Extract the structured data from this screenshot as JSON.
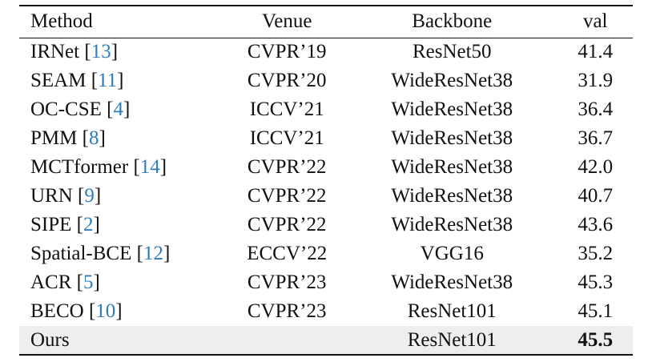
{
  "table": {
    "headers": {
      "method": "Method",
      "venue": "Venue",
      "backbone": "Backbone",
      "val": "val"
    },
    "rows": [
      {
        "method": "IRNet",
        "cite": "13",
        "venue": "CVPR’19",
        "backbone": "ResNet50",
        "val": "41.4"
      },
      {
        "method": "SEAM",
        "cite": "11",
        "venue": "CVPR’20",
        "backbone": "WideResNet38",
        "val": "31.9"
      },
      {
        "method": "OC-CSE",
        "cite": "4",
        "venue": "ICCV’21",
        "backbone": "WideResNet38",
        "val": "36.4"
      },
      {
        "method": "PMM",
        "cite": "8",
        "venue": "ICCV’21",
        "backbone": "WideResNet38",
        "val": "36.7"
      },
      {
        "method": "MCTformer",
        "cite": "14",
        "venue": "CVPR’22",
        "backbone": "WideResNet38",
        "val": "42.0"
      },
      {
        "method": "URN",
        "cite": "9",
        "venue": "CVPR’22",
        "backbone": "WideResNet38",
        "val": "40.7"
      },
      {
        "method": "SIPE",
        "cite": "2",
        "venue": "CVPR’22",
        "backbone": "WideResNet38",
        "val": "43.6"
      },
      {
        "method": "Spatial-BCE",
        "cite": "12",
        "venue": "ECCV’22",
        "backbone": "VGG16",
        "val": "35.2"
      },
      {
        "method": "ACR",
        "cite": "5",
        "venue": "CVPR’23",
        "backbone": "WideResNet38",
        "val": "45.3"
      },
      {
        "method": "BECO",
        "cite": "10",
        "venue": "CVPR’23",
        "backbone": "ResNet101",
        "val": "45.1"
      }
    ],
    "ours": {
      "method": "Ours",
      "venue": "",
      "backbone": "ResNet101",
      "val": "45.5"
    },
    "colors": {
      "citation": "#2f7bbf",
      "highlight_row": "#eeeeee"
    }
  }
}
